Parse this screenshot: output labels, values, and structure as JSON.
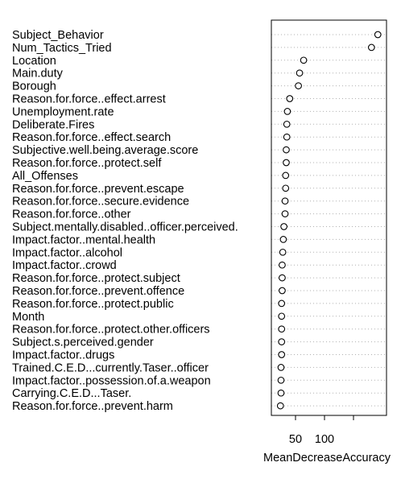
{
  "chart_data": {
    "type": "scatter",
    "subtype": "dotchart",
    "xlabel": "MeanDecreaseAccuracy",
    "x_ticks": [
      50,
      100
    ],
    "xlim": [
      20,
      200
    ],
    "grid": "dotted",
    "point_style": "open-circle",
    "variables": [
      {
        "label": "Subject_Behavior",
        "value": 192
      },
      {
        "label": "Num_Tactics_Tried",
        "value": 181
      },
      {
        "label": "Location",
        "value": 64
      },
      {
        "label": "Main.duty",
        "value": 57
      },
      {
        "label": "Borough",
        "value": 55
      },
      {
        "label": "Reason.for.force..effect.arrest",
        "value": 40
      },
      {
        "label": "Unemployment.rate",
        "value": 36
      },
      {
        "label": "Deliberate.Fires",
        "value": 35
      },
      {
        "label": "Reason.for.force..effect.search",
        "value": 35
      },
      {
        "label": "Subjective.well.being.average.score",
        "value": 34
      },
      {
        "label": "Reason.for.force..protect.self",
        "value": 34
      },
      {
        "label": "All_Offenses",
        "value": 33
      },
      {
        "label": "Reason.for.force..prevent.escape",
        "value": 33
      },
      {
        "label": "Reason.for.force..secure.evidence",
        "value": 32
      },
      {
        "label": "Reason.for.force..other",
        "value": 32
      },
      {
        "label": "Subject.mentally.disabled..officer.perceived.",
        "value": 30
      },
      {
        "label": "Impact.factor..mental.health",
        "value": 29
      },
      {
        "label": "Impact.factor..alcohol",
        "value": 28
      },
      {
        "label": "Impact.factor..crowd",
        "value": 27
      },
      {
        "label": "Reason.for.force..protect.subject",
        "value": 27
      },
      {
        "label": "Reason.for.force..prevent.offence",
        "value": 27
      },
      {
        "label": "Reason.for.force..protect.public",
        "value": 26
      },
      {
        "label": "Month",
        "value": 26
      },
      {
        "label": "Reason.for.force..protect.other.officers",
        "value": 26
      },
      {
        "label": "Subject.s.perceived.gender",
        "value": 26
      },
      {
        "label": "Impact.factor..drugs",
        "value": 26
      },
      {
        "label": "Trained.C.E.D...currently.Taser..officer",
        "value": 25
      },
      {
        "label": "Impact.factor..possession.of.a.weapon",
        "value": 25
      },
      {
        "label": "Carrying.C.E.D...Taser.",
        "value": 25
      },
      {
        "label": "Reason.for.force..prevent.harm",
        "value": 24
      }
    ]
  }
}
